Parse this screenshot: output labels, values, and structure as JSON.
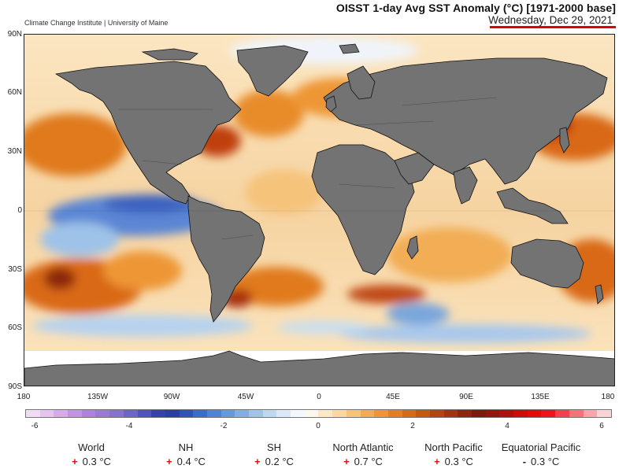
{
  "header": {
    "title": "OISST 1-day Avg SST Anomaly (°C) [1971-2000 base]",
    "date": "Wednesday, Dec 29, 2021",
    "underline_color": "#e00000",
    "source": "Climate Change Institute | University of Maine"
  },
  "map": {
    "lat_labels": [
      "90N",
      "60N",
      "30N",
      "0",
      "30S",
      "60S",
      "90S"
    ],
    "lon_labels": [
      "180",
      "135W",
      "90W",
      "45W",
      "0",
      "45E",
      "90E",
      "135E",
      "180"
    ],
    "land_color": "#737373",
    "antarctic_ice_color": "#ffffff"
  },
  "colorbar": {
    "tick_labels": [
      "-6",
      "-4",
      "-2",
      "0",
      "2",
      "4",
      "6"
    ],
    "colors": [
      "#f1dbf5",
      "#e6c4f0",
      "#d7aaea",
      "#c393e3",
      "#ae82da",
      "#9b7ad3",
      "#8673cb",
      "#6c66c4",
      "#4f55b9",
      "#3642a8",
      "#2a3f9e",
      "#2d55b1",
      "#3b6dc6",
      "#4f84d2",
      "#679ad9",
      "#82afe0",
      "#a0c4e8",
      "#bfd7ef",
      "#dbe9f6",
      "#f3f8fc",
      "#fdf8ec",
      "#fbe8c7",
      "#f8d7a1",
      "#f5c37a",
      "#f2ad54",
      "#ee9634",
      "#e67e1d",
      "#d96914",
      "#c75613",
      "#b44413",
      "#a03514",
      "#8b2611",
      "#7a1b0f",
      "#95140f",
      "#b10f0f",
      "#cc0c0c",
      "#e40a0a",
      "#f1121f",
      "#f33f4f",
      "#f6737c",
      "#f8a6ab",
      "#fad3d5"
    ]
  },
  "stats": [
    {
      "region": "World",
      "sign": "+",
      "value": "0.3 °C"
    },
    {
      "region": "NH",
      "sign": "+",
      "value": "0.4 °C"
    },
    {
      "region": "SH",
      "sign": "+",
      "value": "0.2 °C"
    },
    {
      "region": "North Atlantic",
      "sign": "+",
      "value": "0.7 °C"
    },
    {
      "region": "North Pacific",
      "sign": "+",
      "value": "0.3 °C"
    },
    {
      "region": "Equatorial Pacific",
      "sign": "-",
      "value": "0.3 °C"
    }
  ]
}
